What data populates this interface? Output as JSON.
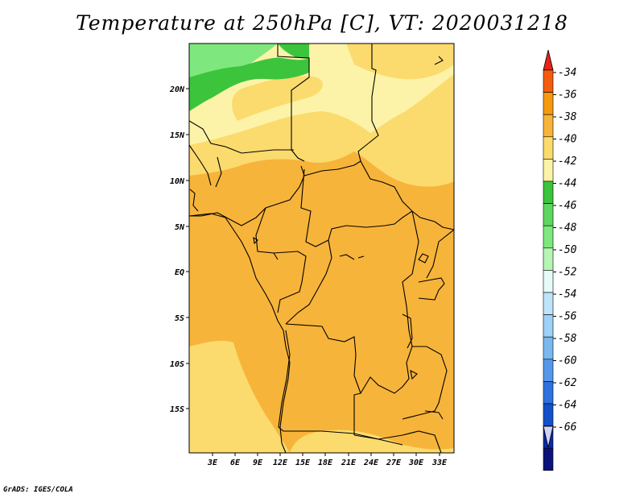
{
  "title": "Temperature at 250hPa [C], VT: 2020031218",
  "footer": "GrADS: IGES/COLA",
  "latitude_labels": [
    "20N",
    "15N",
    "10N",
    "5N",
    "EQ",
    "5S",
    "10S",
    "15S"
  ],
  "longitude_labels": [
    "3E",
    "6E",
    "9E",
    "12E",
    "15E",
    "18E",
    "21E",
    "24E",
    "27E",
    "30E",
    "33E"
  ],
  "colorbar": {
    "labels": [
      "-34",
      "-36",
      "-38",
      "-40",
      "-42",
      "-44",
      "-46",
      "-48",
      "-50",
      "-52",
      "-54",
      "-56",
      "-58",
      "-60",
      "-62",
      "-64",
      "-66"
    ],
    "colors": [
      "#e8241a",
      "#f55c10",
      "#f59a10",
      "#f7b43a",
      "#fbdb6e",
      "#fdf3a8",
      "#3cc43c",
      "#5fd65f",
      "#7ee87e",
      "#b5f5b5",
      "#e6fbf8",
      "#bfe4fa",
      "#9fd0f5",
      "#7ab8f0",
      "#5598ea",
      "#2d72de",
      "#1450c8",
      "#0c2aa0",
      "#0a1478",
      "#d0d4f8"
    ]
  },
  "map": {
    "region_colors": {
      "warmest_green": "#3cc43c",
      "light_green": "#7ee87e",
      "pale_yellow": "#fdf3a8",
      "yellow": "#fbdb6e",
      "orange": "#f7b43a"
    }
  }
}
